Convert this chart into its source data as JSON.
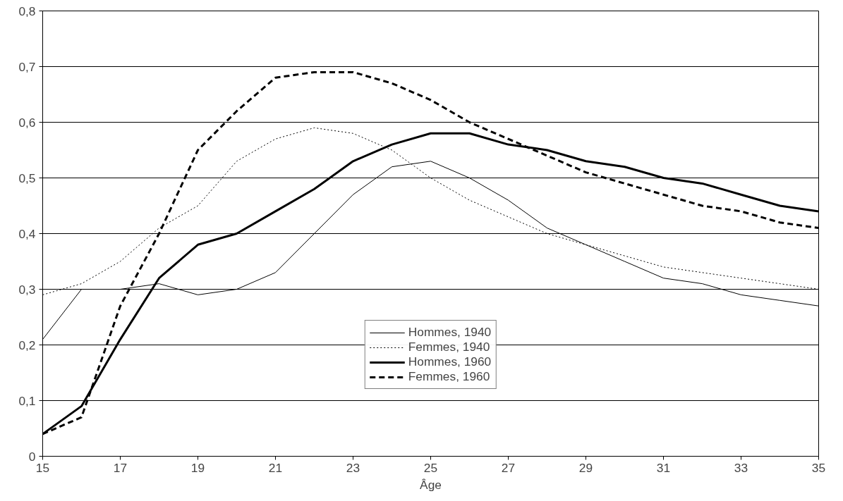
{
  "chart_data": {
    "type": "line",
    "xlabel": "Âge",
    "x": [
      15,
      16,
      17,
      18,
      19,
      20,
      21,
      22,
      23,
      24,
      25,
      26,
      27,
      28,
      29,
      30,
      31,
      32,
      33,
      34,
      35
    ],
    "series": [
      {
        "name": "Hommes, 1940",
        "color": "#000000",
        "line_style": "solid",
        "values": [
          0.21,
          0.3,
          0.3,
          0.31,
          0.29,
          0.3,
          0.33,
          0.4,
          0.47,
          0.52,
          0.53,
          0.5,
          0.46,
          0.41,
          0.38,
          0.35,
          0.32,
          0.31,
          0.29,
          0.28,
          0.27
        ]
      },
      {
        "name": "Femmes, 1940",
        "color": "#000000",
        "line_style": "dotted",
        "values": [
          0.29,
          0.31,
          0.35,
          0.41,
          0.45,
          0.53,
          0.57,
          0.59,
          0.58,
          0.55,
          0.5,
          0.46,
          0.43,
          0.4,
          0.38,
          0.36,
          0.34,
          0.33,
          0.32,
          0.31,
          0.3
        ]
      },
      {
        "name": "Hommes, 1960",
        "color": "#000000",
        "line_style": "solid",
        "values": [
          0.04,
          0.09,
          0.21,
          0.32,
          0.38,
          0.4,
          0.44,
          0.48,
          0.53,
          0.56,
          0.58,
          0.58,
          0.56,
          0.55,
          0.53,
          0.52,
          0.5,
          0.49,
          0.47,
          0.45,
          0.44
        ]
      },
      {
        "name": "Femmes, 1960",
        "color": "#000000",
        "line_style": "dashed",
        "values": [
          0.04,
          0.07,
          0.27,
          0.4,
          0.55,
          0.62,
          0.68,
          0.69,
          0.69,
          0.67,
          0.64,
          0.6,
          0.57,
          0.54,
          0.51,
          0.49,
          0.47,
          0.45,
          0.44,
          0.42,
          0.41
        ]
      }
    ],
    "xlim": [
      15,
      35
    ],
    "xticks": [
      15,
      17,
      19,
      21,
      23,
      25,
      27,
      29,
      31,
      33,
      35
    ],
    "ylim": [
      0,
      0.8
    ],
    "yticks": [
      0,
      {
        "value": 0.1,
        "label": "0,1"
      },
      {
        "value": 0.2,
        "label": "0,2"
      },
      {
        "value": 0.3,
        "label": "0,3"
      },
      {
        "value": 0.4,
        "label": "0,4"
      },
      {
        "value": 0.5,
        "label": "0,5"
      },
      {
        "value": 0.6,
        "label": "0,6"
      },
      {
        "value": 0.7,
        "label": "0,7"
      },
      {
        "value": 0.8,
        "label": "0,8"
      }
    ],
    "grid": "y",
    "legend": "bottom",
    "marker": "none"
  }
}
